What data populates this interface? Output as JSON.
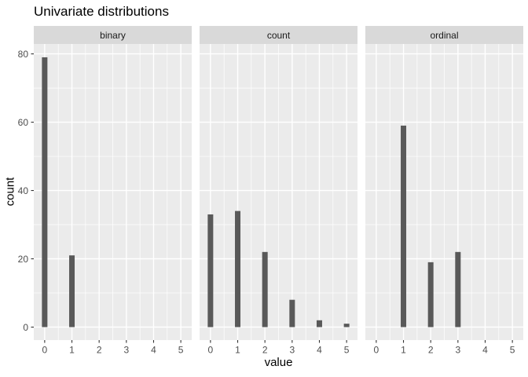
{
  "chart_data": {
    "type": "bar",
    "title": "Univariate distributions",
    "xlabel": "value",
    "ylabel": "count",
    "facets": [
      {
        "label": "binary",
        "x": [
          0,
          1
        ],
        "counts": [
          79,
          21
        ]
      },
      {
        "label": "count",
        "x": [
          0,
          1,
          2,
          3,
          4,
          5
        ],
        "counts": [
          33,
          34,
          22,
          8,
          2,
          1
        ]
      },
      {
        "label": "ordinal",
        "x": [
          1,
          2,
          3
        ],
        "counts": [
          59,
          19,
          22
        ]
      }
    ],
    "x_ticks": [
      0,
      1,
      2,
      3,
      4,
      5
    ],
    "y_ticks": [
      0,
      20,
      40,
      60,
      80
    ],
    "y_minor_ticks": [
      10,
      30,
      50,
      70
    ],
    "x_minor_ticks": [
      0.5,
      1.5,
      2.5,
      3.5,
      4.5
    ],
    "xlim": [
      -0.4,
      5.4
    ],
    "ylim": [
      -3.8,
      82.9
    ],
    "grid": true,
    "legend": "none",
    "colors": {
      "bar": "#595959",
      "panel_background": "#ebebeb",
      "strip_background": "#d9d9d9",
      "strip_text": "#1a1a1a",
      "gridline": "#ffffff",
      "tick_mark": "#333333",
      "tick_label": "#4d4d4d",
      "axis_title": "#000000",
      "title": "#000000",
      "background": "#ffffff"
    }
  }
}
